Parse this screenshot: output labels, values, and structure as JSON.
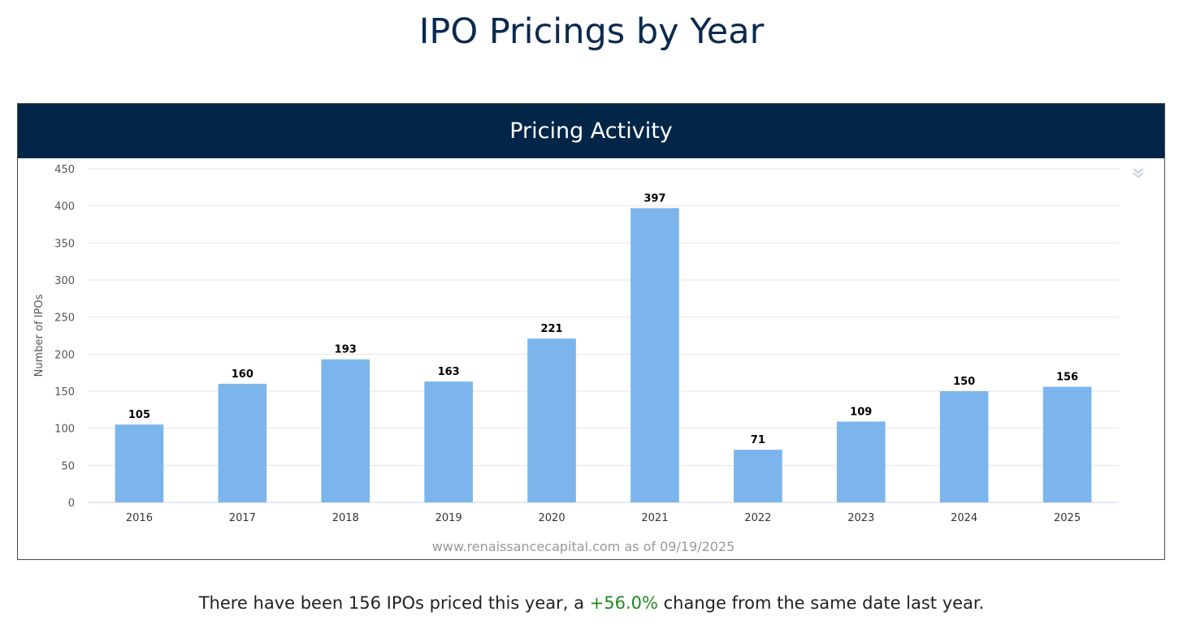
{
  "page": {
    "title": "IPO Pricings by Year"
  },
  "card": {
    "header": "Pricing Activity",
    "menu_icon": "double-chevron-down-icon"
  },
  "chart_data": {
    "type": "bar",
    "title": "Pricing Activity",
    "xlabel": "",
    "ylabel": "Number of IPOs",
    "categories": [
      "2016",
      "2017",
      "2018",
      "2019",
      "2020",
      "2021",
      "2022",
      "2023",
      "2024",
      "2025"
    ],
    "values": [
      105,
      160,
      193,
      163,
      221,
      397,
      71,
      109,
      150,
      156
    ],
    "ylim": [
      0,
      450
    ],
    "yticks": [
      0,
      50,
      100,
      150,
      200,
      250,
      300,
      350,
      400,
      450
    ],
    "grid": true,
    "bar_color": "#7cb5ec",
    "data_labels": true,
    "credit": "www.renaissancecapital.com as of 09/19/2025"
  },
  "summary": {
    "prefix": "There have been 156 IPOs priced this year, a ",
    "change": "+56.0%",
    "suffix": " change from the same date last year.",
    "change_color": "#1e8a1e"
  }
}
